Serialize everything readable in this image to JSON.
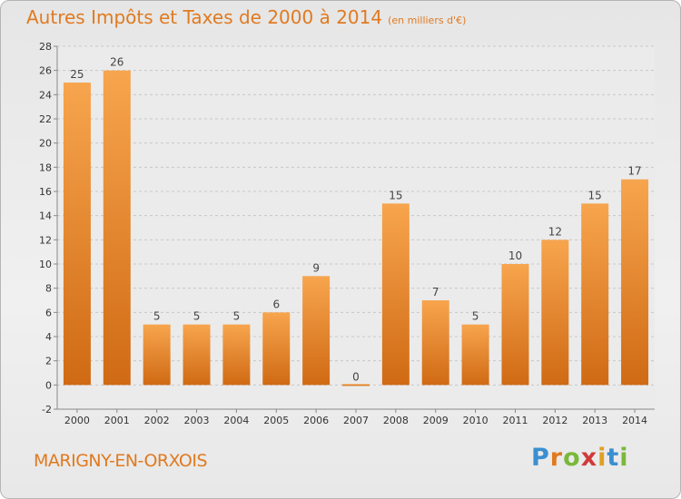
{
  "header": {
    "title": "Autres Impôts et Taxes de 2000 à 2014",
    "subtitle": "(en milliers d'€)"
  },
  "footer": {
    "commune": "MARIGNY-EN-ORXOIS",
    "logo": [
      "P",
      "r",
      "o",
      "x",
      "i",
      "t",
      "i"
    ],
    "logo_colors": [
      "#3a8fd0",
      "#e07a20",
      "#7ab83a",
      "#d03a3a",
      "#e0a020",
      "#3a8fd0",
      "#7ab83a"
    ]
  },
  "colors": {
    "bar_light": "#f7a54e",
    "bar_dark": "#d06a14",
    "grid": "#c8c8c8",
    "title": "#e07a20"
  },
  "chart_data": {
    "type": "bar",
    "title": "Autres Impôts et Taxes de 2000 à 2014",
    "subtitle": "(en milliers d'€)",
    "categories": [
      "2000",
      "2001",
      "2002",
      "2003",
      "2004",
      "2005",
      "2006",
      "2007",
      "2008",
      "2009",
      "2010",
      "2011",
      "2012",
      "2013",
      "2014"
    ],
    "values": [
      25,
      26,
      5,
      5,
      5,
      6,
      9,
      0,
      15,
      7,
      5,
      10,
      12,
      15,
      17
    ],
    "ylim": [
      -2,
      28
    ],
    "yticks": [
      -2,
      0,
      2,
      4,
      6,
      8,
      10,
      12,
      14,
      16,
      18,
      20,
      22,
      24,
      26,
      28
    ],
    "grid": true,
    "xlabel": "",
    "ylabel": ""
  }
}
